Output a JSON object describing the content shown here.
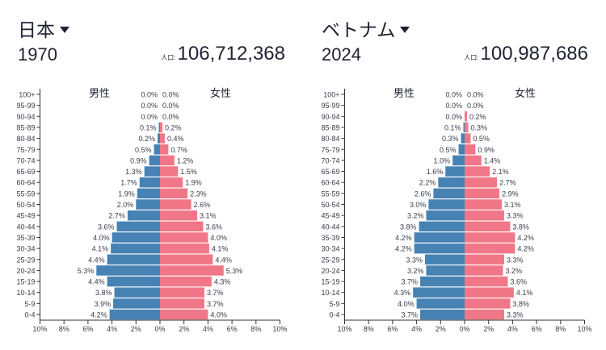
{
  "colors": {
    "male": "#4682b4",
    "female": "#ef7787",
    "text": "#3a3d4d",
    "axis": "#333333"
  },
  "panels": [
    {
      "country": "日本",
      "country_icon": "caret-down-icon",
      "year": "1970",
      "population_label": "人口:",
      "population": "106,712,368"
    },
    {
      "country": "ベトナム",
      "country_icon": "caret-down-icon",
      "year": "2024",
      "population_label": "人口:",
      "population": "100,987,686"
    }
  ],
  "chart_data": [
    {
      "type": "bar",
      "orientation": "horizontal-population-pyramid",
      "categories": [
        "100+",
        "95-99",
        "90-94",
        "85-89",
        "80-84",
        "75-79",
        "70-74",
        "65-69",
        "60-64",
        "55-59",
        "50-54",
        "45-49",
        "40-44",
        "35-39",
        "30-34",
        "25-29",
        "20-24",
        "15-19",
        "10-14",
        "5-9",
        "0-4"
      ],
      "series": [
        {
          "name": "男性",
          "values": [
            0.0,
            0.0,
            0.0,
            0.1,
            0.2,
            0.5,
            0.9,
            1.3,
            1.7,
            1.9,
            2.0,
            2.7,
            3.6,
            4.0,
            4.1,
            4.4,
            5.3,
            4.4,
            3.8,
            3.9,
            4.2
          ]
        },
        {
          "name": "女性",
          "values": [
            0.0,
            0.0,
            0.0,
            0.2,
            0.4,
            0.7,
            1.2,
            1.5,
            1.9,
            2.3,
            2.6,
            3.1,
            3.6,
            4.0,
            4.1,
            4.4,
            5.3,
            4.3,
            3.7,
            3.7,
            4.0
          ]
        }
      ],
      "xlim": [
        -10,
        10
      ],
      "xticks": [
        "10%",
        "8%",
        "6%",
        "4%",
        "2%",
        "0%",
        "2%",
        "4%",
        "6%",
        "8%",
        "10%"
      ],
      "unit": "%"
    },
    {
      "type": "bar",
      "orientation": "horizontal-population-pyramid",
      "categories": [
        "100+",
        "95-99",
        "90-94",
        "85-89",
        "80-84",
        "75-79",
        "70-74",
        "65-69",
        "60-64",
        "55-59",
        "50-54",
        "45-49",
        "40-44",
        "35-39",
        "30-34",
        "25-29",
        "20-24",
        "15-19",
        "10-14",
        "5-9",
        "0-4"
      ],
      "series": [
        {
          "name": "男性",
          "values": [
            0.0,
            0.0,
            0.0,
            0.1,
            0.3,
            0.5,
            1.0,
            1.6,
            2.2,
            2.6,
            3.0,
            3.2,
            3.8,
            4.2,
            4.2,
            3.3,
            3.2,
            3.7,
            4.3,
            4.0,
            3.7
          ]
        },
        {
          "name": "女性",
          "values": [
            0.0,
            0.0,
            0.2,
            0.3,
            0.5,
            0.9,
            1.4,
            2.1,
            2.7,
            2.9,
            3.1,
            3.3,
            3.8,
            4.2,
            4.2,
            3.3,
            3.2,
            3.6,
            4.1,
            3.8,
            3.3
          ]
        }
      ],
      "xlim": [
        -10,
        10
      ],
      "xticks": [
        "10%",
        "8%",
        "6%",
        "4%",
        "2%",
        "0%",
        "2%",
        "4%",
        "6%",
        "8%",
        "10%"
      ],
      "unit": "%"
    }
  ]
}
